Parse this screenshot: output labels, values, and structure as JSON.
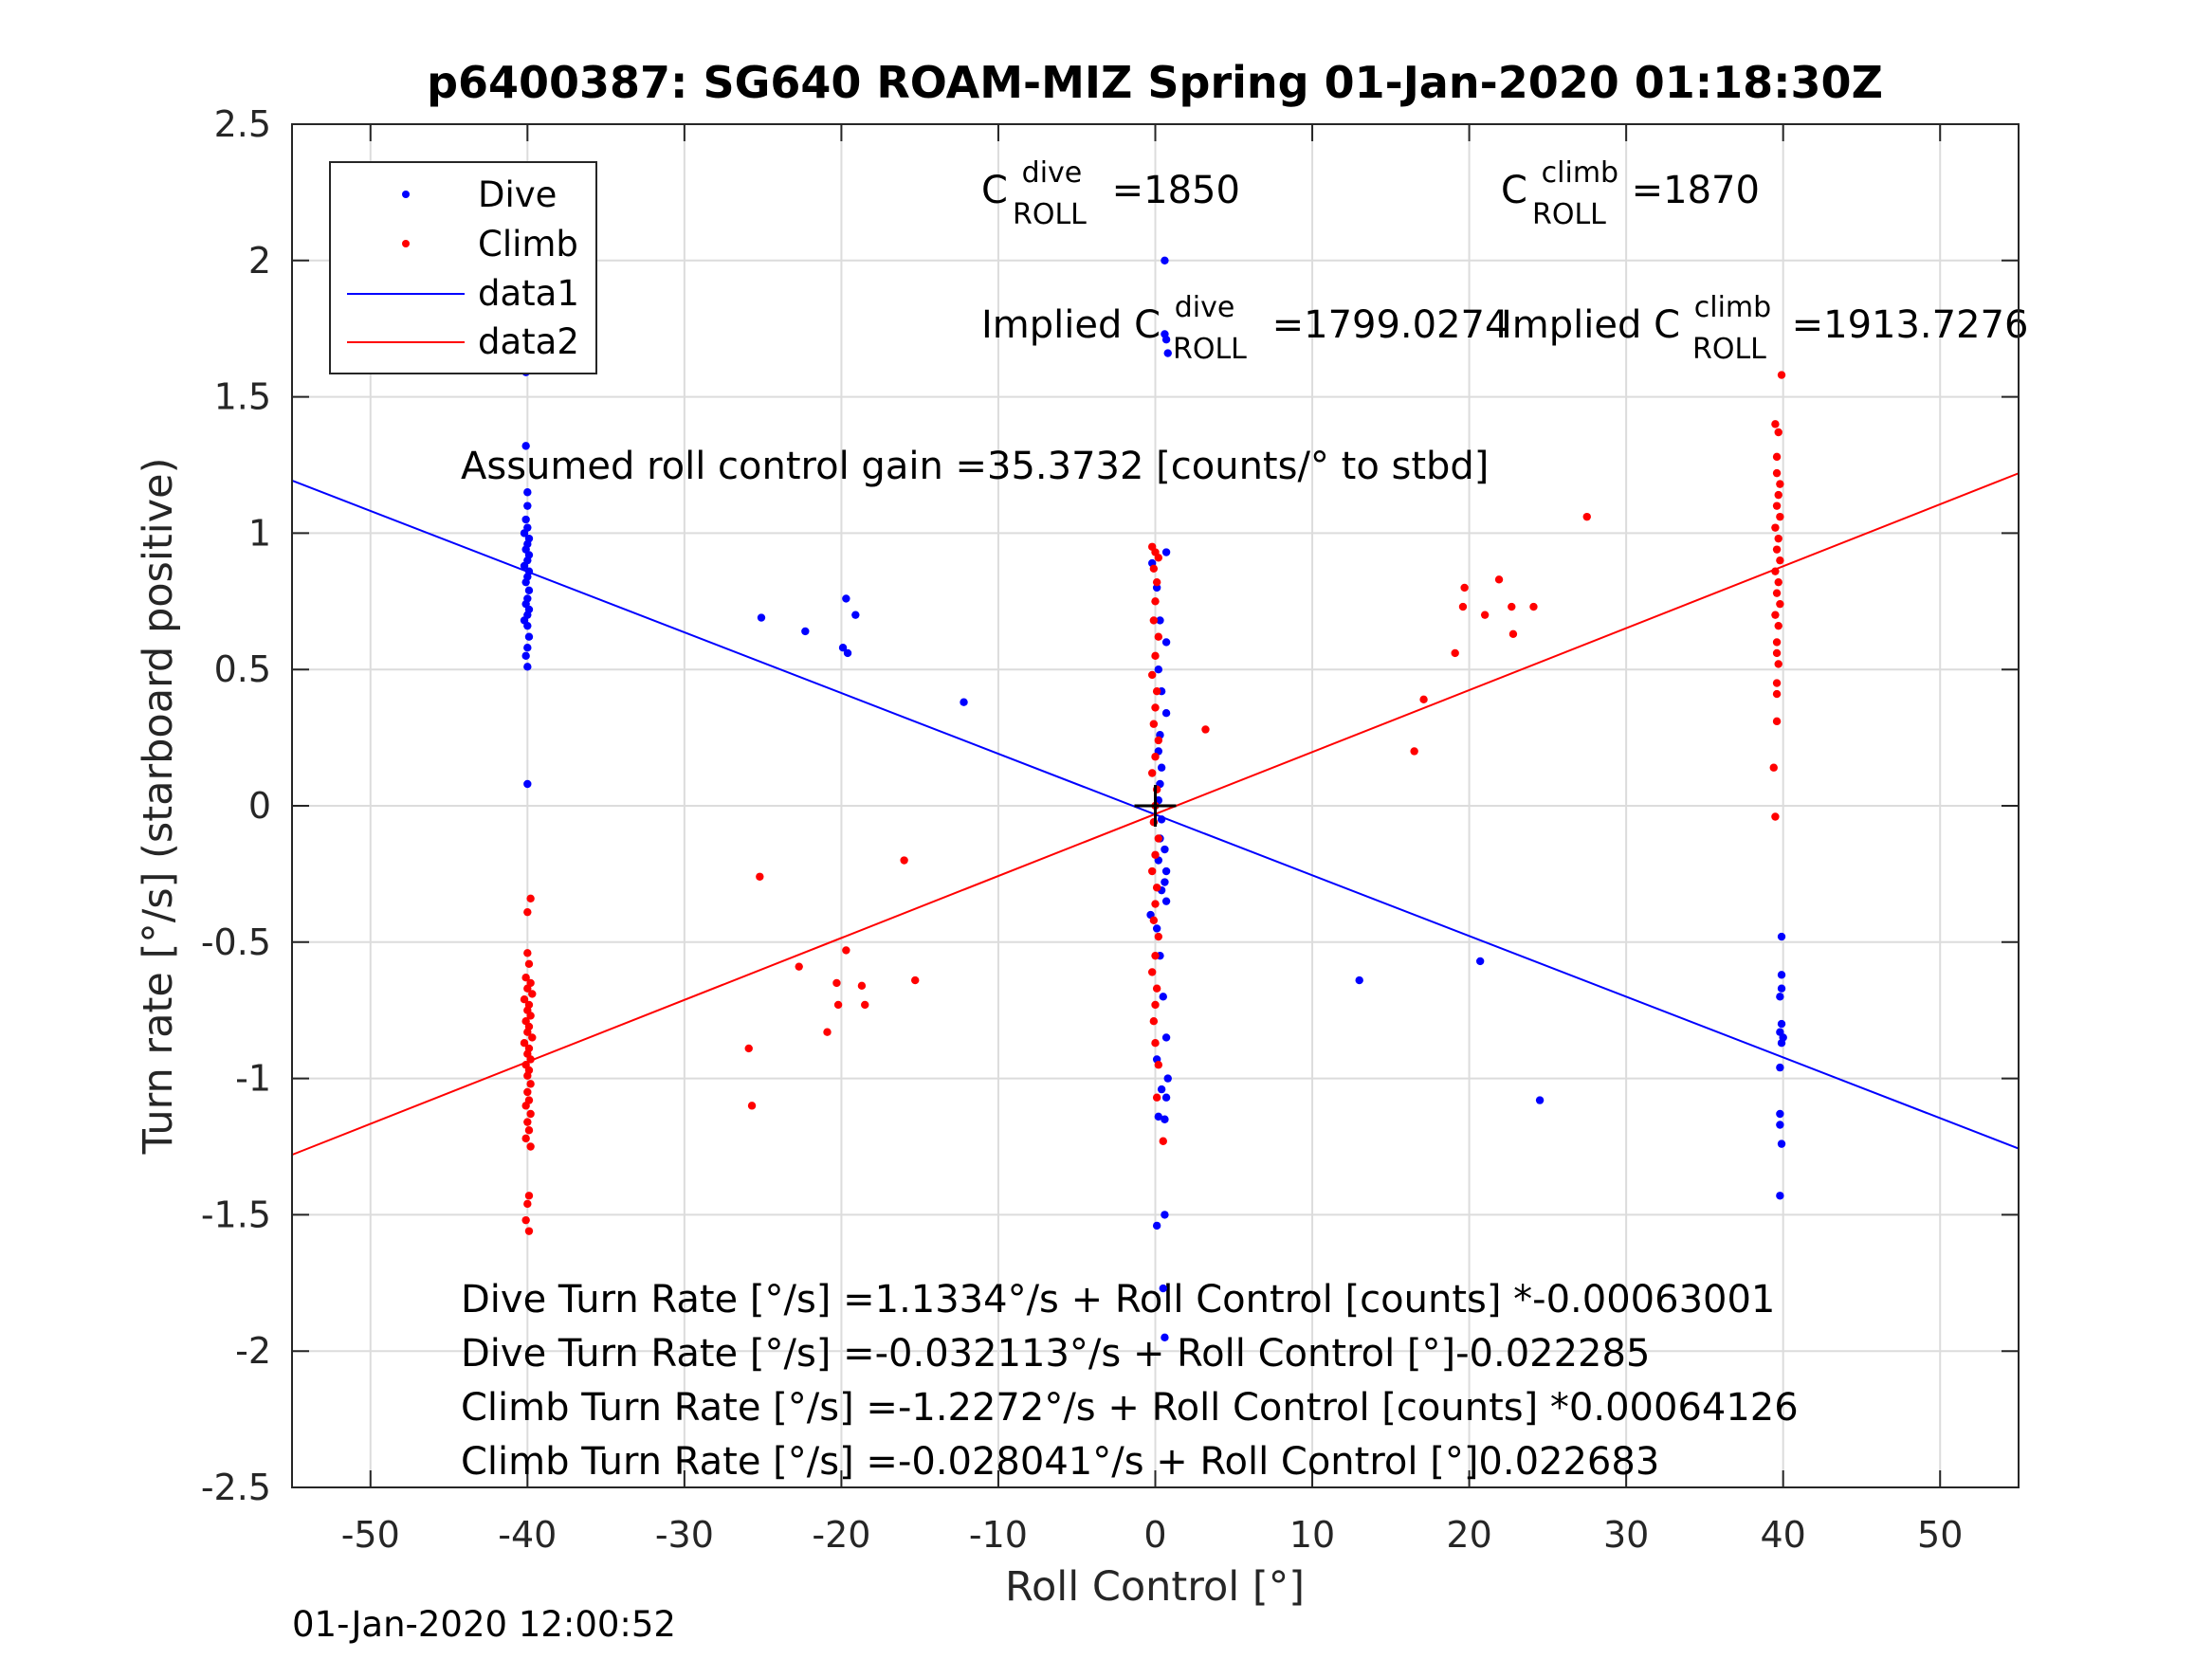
{
  "chart_data": {
    "type": "scatter",
    "title": "p6400387: SG640 ROAM-MIZ Spring 01-Jan-2020 01:18:30Z",
    "xlabel": "Roll Control [°]",
    "ylabel": "Turn rate [°/s] (starboard positive)",
    "xlim": [
      -55,
      55
    ],
    "ylim": [
      -2.5,
      2.5
    ],
    "xticks": [
      -50,
      -40,
      -30,
      -20,
      -10,
      0,
      10,
      20,
      30,
      40,
      50
    ],
    "xtick_labels": [
      "-50",
      "-40",
      "-30",
      "-20",
      "-10",
      "0",
      "10",
      "20",
      "30",
      "40",
      "50"
    ],
    "yticks": [
      -2.5,
      -2,
      -1.5,
      -1,
      -0.5,
      0,
      0.5,
      1,
      1.5,
      2,
      2.5
    ],
    "ytick_labels": [
      "-2.5",
      "-2",
      "-1.5",
      "-1",
      "-0.5",
      "0",
      "0.5",
      "1",
      "1.5",
      "2",
      "2.5"
    ],
    "grid": true,
    "legend_position": "top-left",
    "colors": {
      "dive": "#0000ff",
      "climb": "#ff0000",
      "axes": "#262626"
    },
    "series": [
      {
        "name": "Dive",
        "kind": "points",
        "color": "#0000ff",
        "points": [
          [
            -40.1,
            1.59
          ],
          [
            -40.1,
            1.32
          ],
          [
            -40,
            1.15
          ],
          [
            -40,
            1.1
          ],
          [
            -40.1,
            1.05
          ],
          [
            -40,
            1.02
          ],
          [
            -40.2,
            1.0
          ],
          [
            -39.9,
            0.98
          ],
          [
            -40,
            0.96
          ],
          [
            -40.1,
            0.94
          ],
          [
            -39.9,
            0.92
          ],
          [
            -40,
            0.9
          ],
          [
            -40.2,
            0.88
          ],
          [
            -39.9,
            0.86
          ],
          [
            -40,
            0.84
          ],
          [
            -40.1,
            0.82
          ],
          [
            -39.9,
            0.79
          ],
          [
            -40,
            0.76
          ],
          [
            -40.1,
            0.74
          ],
          [
            -39.9,
            0.72
          ],
          [
            -40,
            0.7
          ],
          [
            -40.2,
            0.68
          ],
          [
            -40,
            0.66
          ],
          [
            -39.9,
            0.62
          ],
          [
            -40,
            0.58
          ],
          [
            -40.1,
            0.55
          ],
          [
            -40,
            0.51
          ],
          [
            -40,
            0.08
          ],
          [
            -25.1,
            0.69
          ],
          [
            -22.3,
            0.64
          ],
          [
            -19.7,
            0.76
          ],
          [
            -19.1,
            0.7
          ],
          [
            -19.9,
            0.58
          ],
          [
            -19.6,
            0.56
          ],
          [
            -12.2,
            0.38
          ],
          [
            0.6,
            2.0
          ],
          [
            0.6,
            1.73
          ],
          [
            0.7,
            1.71
          ],
          [
            0.8,
            1.66
          ],
          [
            0.7,
            0.93
          ],
          [
            -0.2,
            0.89
          ],
          [
            0.1,
            0.8
          ],
          [
            0.3,
            0.68
          ],
          [
            0.7,
            0.6
          ],
          [
            0.2,
            0.5
          ],
          [
            0.4,
            0.42
          ],
          [
            0.7,
            0.34
          ],
          [
            0.3,
            0.26
          ],
          [
            0.2,
            0.2
          ],
          [
            0.4,
            0.14
          ],
          [
            0.3,
            0.08
          ],
          [
            0.2,
            0.02
          ],
          [
            0.4,
            -0.05
          ],
          [
            0.3,
            -0.12
          ],
          [
            0.6,
            -0.16
          ],
          [
            0.2,
            -0.2
          ],
          [
            0.7,
            -0.24
          ],
          [
            0.6,
            -0.28
          ],
          [
            0.4,
            -0.31
          ],
          [
            0.7,
            -0.35
          ],
          [
            -0.3,
            -0.4
          ],
          [
            0.1,
            -0.45
          ],
          [
            0.3,
            -0.55
          ],
          [
            0.5,
            -0.7
          ],
          [
            0.7,
            -0.85
          ],
          [
            0.1,
            -0.93
          ],
          [
            0.4,
            -1.04
          ],
          [
            0.8,
            -1.0
          ],
          [
            0.7,
            -1.07
          ],
          [
            0.2,
            -1.14
          ],
          [
            0.6,
            -1.15
          ],
          [
            0.6,
            -1.5
          ],
          [
            0.1,
            -1.54
          ],
          [
            0.5,
            -1.77
          ],
          [
            0.6,
            -1.95
          ],
          [
            13.0,
            -0.64
          ],
          [
            20.7,
            -0.57
          ],
          [
            24.5,
            -1.08
          ],
          [
            39.9,
            -0.48
          ],
          [
            39.9,
            -0.62
          ],
          [
            39.9,
            -0.67
          ],
          [
            39.8,
            -0.7
          ],
          [
            39.9,
            -0.8
          ],
          [
            39.8,
            -0.83
          ],
          [
            40.0,
            -0.85
          ],
          [
            39.9,
            -0.87
          ],
          [
            39.8,
            -0.96
          ],
          [
            39.8,
            -1.13
          ],
          [
            39.8,
            -1.17
          ],
          [
            39.9,
            -1.24
          ],
          [
            39.8,
            -1.43
          ]
        ]
      },
      {
        "name": "Climb",
        "kind": "points",
        "color": "#ff0000",
        "points": [
          [
            -39.8,
            -0.34
          ],
          [
            -40.0,
            -0.39
          ],
          [
            -40.0,
            -0.54
          ],
          [
            -39.9,
            -0.58
          ],
          [
            -40.1,
            -0.63
          ],
          [
            -39.8,
            -0.65
          ],
          [
            -40.0,
            -0.67
          ],
          [
            -39.7,
            -0.69
          ],
          [
            -40.2,
            -0.71
          ],
          [
            -39.9,
            -0.73
          ],
          [
            -40.0,
            -0.75
          ],
          [
            -39.8,
            -0.77
          ],
          [
            -40.1,
            -0.79
          ],
          [
            -39.9,
            -0.81
          ],
          [
            -40.0,
            -0.83
          ],
          [
            -39.7,
            -0.85
          ],
          [
            -40.2,
            -0.87
          ],
          [
            -39.9,
            -0.89
          ],
          [
            -40.0,
            -0.91
          ],
          [
            -39.8,
            -0.93
          ],
          [
            -40.1,
            -0.95
          ],
          [
            -39.9,
            -0.97
          ],
          [
            -40.0,
            -0.99
          ],
          [
            -39.8,
            -1.02
          ],
          [
            -40.0,
            -1.05
          ],
          [
            -39.9,
            -1.08
          ],
          [
            -40.1,
            -1.1
          ],
          [
            -39.8,
            -1.13
          ],
          [
            -40.0,
            -1.16
          ],
          [
            -39.9,
            -1.19
          ],
          [
            -40.1,
            -1.22
          ],
          [
            -39.8,
            -1.25
          ],
          [
            -39.9,
            -1.43
          ],
          [
            -40.0,
            -1.46
          ],
          [
            -40.1,
            -1.52
          ],
          [
            -39.9,
            -1.56
          ],
          [
            -25.2,
            -0.26
          ],
          [
            -22.7,
            -0.59
          ],
          [
            -20.3,
            -0.65
          ],
          [
            -20.2,
            -0.73
          ],
          [
            -19.7,
            -0.53
          ],
          [
            -18.7,
            -0.66
          ],
          [
            -18.5,
            -0.73
          ],
          [
            -20.9,
            -0.83
          ],
          [
            -16.0,
            -0.2
          ],
          [
            -15.3,
            -0.64
          ],
          [
            -25.9,
            -0.89
          ],
          [
            -25.7,
            -1.1
          ],
          [
            -0.2,
            0.95
          ],
          [
            0.0,
            0.93
          ],
          [
            0.2,
            0.91
          ],
          [
            -0.1,
            0.87
          ],
          [
            0.1,
            0.82
          ],
          [
            0.0,
            0.75
          ],
          [
            -0.1,
            0.68
          ],
          [
            0.2,
            0.62
          ],
          [
            0.0,
            0.55
          ],
          [
            -0.2,
            0.48
          ],
          [
            0.1,
            0.42
          ],
          [
            0.0,
            0.36
          ],
          [
            -0.1,
            0.3
          ],
          [
            0.2,
            0.24
          ],
          [
            0.0,
            0.18
          ],
          [
            -0.2,
            0.12
          ],
          [
            0.1,
            0.06
          ],
          [
            0.0,
            0.0
          ],
          [
            -0.1,
            -0.06
          ],
          [
            0.2,
            -0.12
          ],
          [
            0.0,
            -0.18
          ],
          [
            -0.2,
            -0.24
          ],
          [
            0.1,
            -0.3
          ],
          [
            0.0,
            -0.36
          ],
          [
            -0.1,
            -0.42
          ],
          [
            0.2,
            -0.48
          ],
          [
            0.0,
            -0.55
          ],
          [
            -0.2,
            -0.61
          ],
          [
            0.1,
            -0.67
          ],
          [
            0.0,
            -0.73
          ],
          [
            -0.1,
            -0.79
          ],
          [
            0.0,
            -0.87
          ],
          [
            0.2,
            -0.95
          ],
          [
            0.1,
            -1.07
          ],
          [
            0.5,
            -1.23
          ],
          [
            3.2,
            0.28
          ],
          [
            16.5,
            0.2
          ],
          [
            17.1,
            0.39
          ],
          [
            19.1,
            0.56
          ],
          [
            19.7,
            0.8
          ],
          [
            19.6,
            0.73
          ],
          [
            21.0,
            0.7
          ],
          [
            21.9,
            0.83
          ],
          [
            22.7,
            0.73
          ],
          [
            22.8,
            0.63
          ],
          [
            24.1,
            0.73
          ],
          [
            27.5,
            1.06
          ],
          [
            39.9,
            1.58
          ],
          [
            39.5,
            1.4
          ],
          [
            39.7,
            1.37
          ],
          [
            39.6,
            1.28
          ],
          [
            39.6,
            1.22
          ],
          [
            39.8,
            1.18
          ],
          [
            39.7,
            1.14
          ],
          [
            39.6,
            1.1
          ],
          [
            39.8,
            1.06
          ],
          [
            39.5,
            1.02
          ],
          [
            39.7,
            0.98
          ],
          [
            39.6,
            0.94
          ],
          [
            39.8,
            0.9
          ],
          [
            39.5,
            0.86
          ],
          [
            39.7,
            0.82
          ],
          [
            39.6,
            0.78
          ],
          [
            39.8,
            0.74
          ],
          [
            39.5,
            0.7
          ],
          [
            39.7,
            0.66
          ],
          [
            39.6,
            0.6
          ],
          [
            39.6,
            0.56
          ],
          [
            39.7,
            0.52
          ],
          [
            39.6,
            0.45
          ],
          [
            39.6,
            0.41
          ],
          [
            39.6,
            0.31
          ],
          [
            39.4,
            0.14
          ],
          [
            39.5,
            -0.04
          ]
        ]
      },
      {
        "name": "data1",
        "kind": "line",
        "color": "#0000ff",
        "x": [
          -55,
          55
        ],
        "y": [
          1.193,
          -1.257
        ]
      },
      {
        "name": "data2",
        "kind": "line",
        "color": "#ff0000",
        "x": [
          -55,
          55
        ],
        "y": [
          -1.28,
          1.2196
        ]
      }
    ],
    "center_marker": {
      "x": 0,
      "y": 0,
      "symbol": "+",
      "color": "#000000"
    },
    "annotations": {
      "c_dive_prefix": "C",
      "c_dive_sup": "dive",
      "c_dive_sub": "ROLL",
      "c_dive_value": "=1850",
      "c_climb_prefix": "C",
      "c_climb_sup": "climb",
      "c_climb_sub": "ROLL",
      "c_climb_value": "=1870",
      "implied_dive_prefix": "Implied C",
      "implied_dive_sup": "dive",
      "implied_dive_sub": "ROLL",
      "implied_dive_value": "=1799.0274",
      "implied_climb_prefix": "Implied C",
      "implied_climb_sup": "climb",
      "implied_climb_sub": "ROLL",
      "implied_climb_value": "=1913.7276",
      "gain": "Assumed roll control gain =35.3732 [counts/° to stbd]",
      "fit_lines": [
        "Dive Turn Rate [°/s] =1.1334°/s + Roll Control [counts] *-0.00063001",
        "Dive Turn Rate [°/s] =-0.032113°/s + Roll Control [°]-0.022285",
        "Climb Turn Rate [°/s] =-1.2272°/s + Roll Control [counts] *0.00064126",
        "Climb Turn Rate [°/s] =-0.028041°/s + Roll Control [°]0.022683"
      ]
    },
    "footer": "01-Jan-2020 12:00:52"
  }
}
